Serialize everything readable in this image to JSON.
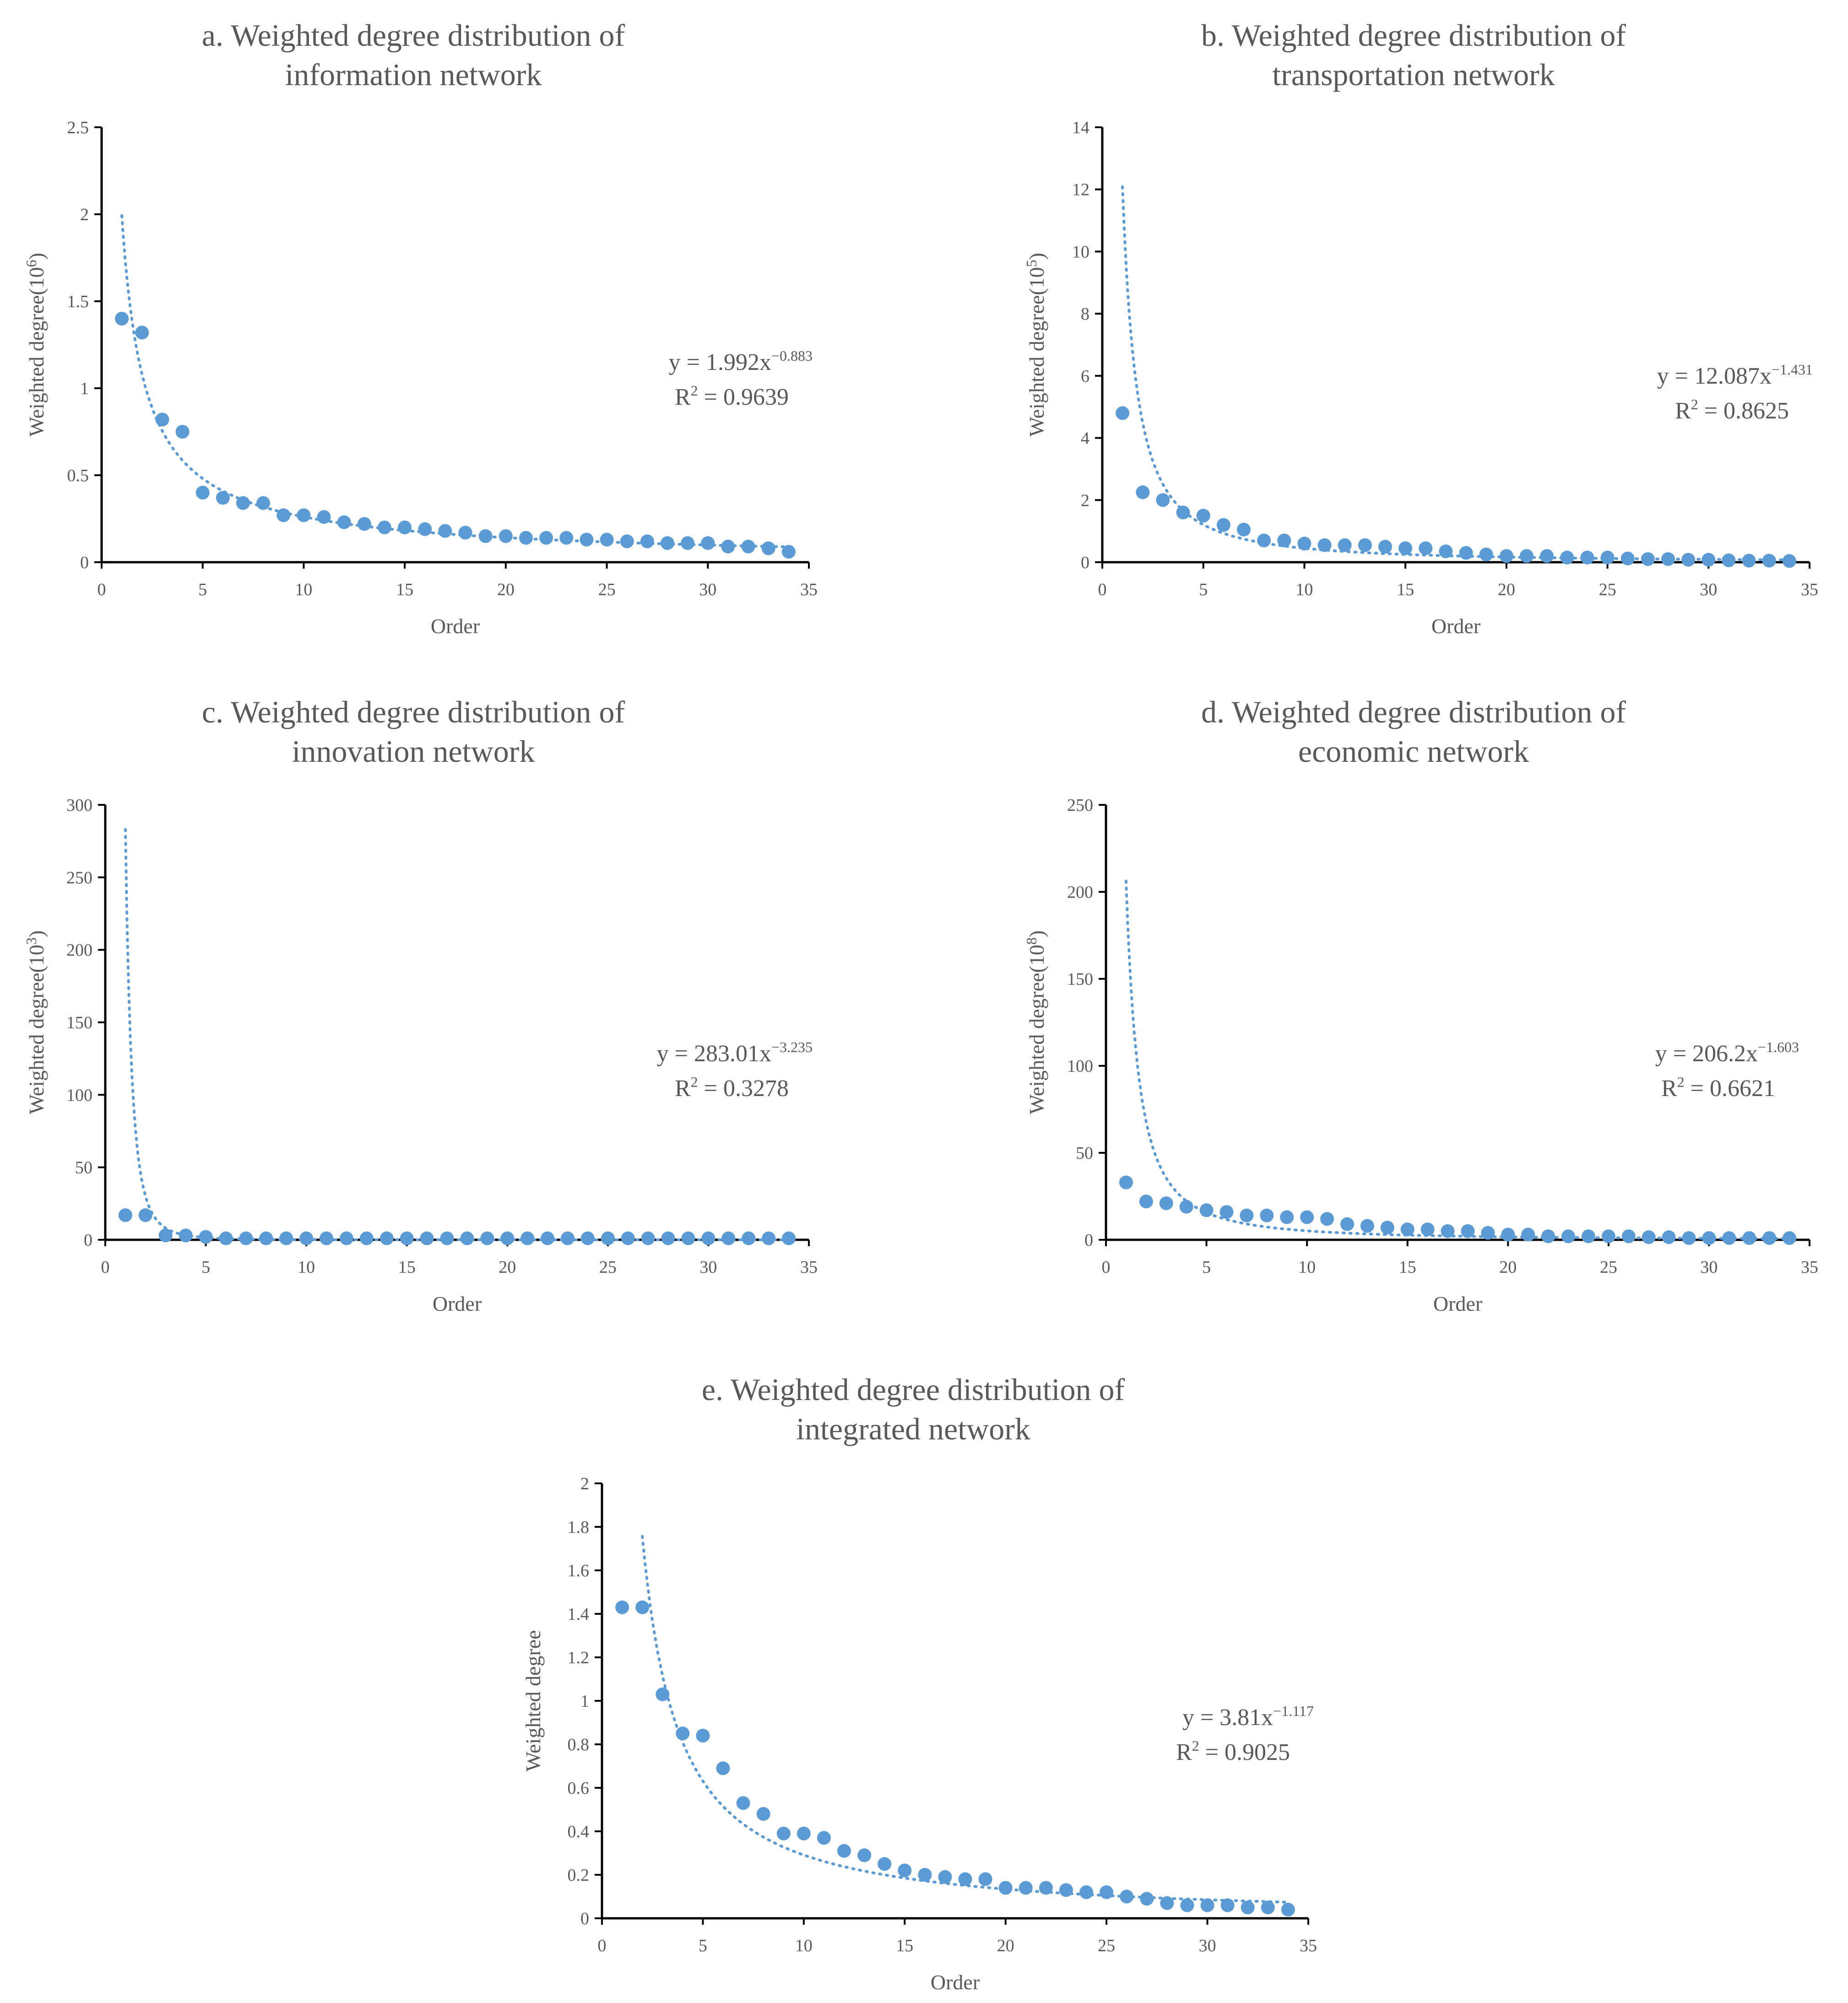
{
  "chart_data": [
    {
      "type": "scatter",
      "title": [
        "a. Weighted degree distribution of",
        "information network"
      ],
      "xlabel": "Order",
      "ylabel": "Weighted degree(10",
      "ylabel_sup": "6",
      "ylabel_end": ")",
      "xlim": [
        0,
        35
      ],
      "ylim": [
        0,
        2.5
      ],
      "xticks": [
        "0",
        "5",
        "10",
        "15",
        "20",
        "25",
        "30",
        "35"
      ],
      "yticks": [
        "0",
        "0.5",
        "1",
        "1.5",
        "2",
        "2.5"
      ],
      "series": [
        {
          "x": [
            1,
            2,
            3,
            4,
            5,
            6,
            7,
            8,
            9,
            10,
            11,
            12,
            13,
            14,
            15,
            16,
            17,
            18,
            19,
            20,
            21,
            22,
            23,
            24,
            25,
            26,
            27,
            28,
            29,
            30,
            31,
            32,
            33,
            34
          ],
          "y": [
            1.4,
            1.32,
            0.82,
            0.75,
            0.4,
            0.37,
            0.34,
            0.34,
            0.27,
            0.27,
            0.26,
            0.23,
            0.22,
            0.2,
            0.2,
            0.19,
            0.18,
            0.17,
            0.15,
            0.15,
            0.14,
            0.14,
            0.14,
            0.13,
            0.13,
            0.12,
            0.12,
            0.11,
            0.11,
            0.11,
            0.09,
            0.09,
            0.08,
            0.06
          ]
        }
      ],
      "trendline": {
        "type": "power",
        "a": 1.992,
        "b": -0.883,
        "x_from": 1,
        "x_to": 34
      },
      "equation": {
        "prefix": "y = 1.992x",
        "exponent": "−0.883",
        "r2_prefix": "R",
        "r2_sup": "2",
        "r2_value": " = 0.9639"
      }
    },
    {
      "type": "scatter",
      "title": [
        "b. Weighted degree distribution of",
        "transportation network"
      ],
      "xlabel": "Order",
      "ylabel": "Weighted degree(10",
      "ylabel_sup": "5",
      "ylabel_end": ")",
      "xlim": [
        0,
        35
      ],
      "ylim": [
        0,
        14
      ],
      "xticks": [
        "0",
        "5",
        "10",
        "15",
        "20",
        "25",
        "30",
        "35"
      ],
      "yticks": [
        "0",
        "2",
        "4",
        "6",
        "8",
        "10",
        "12",
        "14"
      ],
      "series": [
        {
          "x": [
            1,
            2,
            3,
            4,
            5,
            6,
            7,
            8,
            9,
            10,
            11,
            12,
            13,
            14,
            15,
            16,
            17,
            18,
            19,
            20,
            21,
            22,
            23,
            24,
            25,
            26,
            27,
            28,
            29,
            30,
            31,
            32,
            33,
            34
          ],
          "y": [
            4.8,
            2.25,
            2.0,
            1.6,
            1.5,
            1.2,
            1.05,
            0.7,
            0.7,
            0.6,
            0.55,
            0.55,
            0.55,
            0.5,
            0.45,
            0.45,
            0.35,
            0.3,
            0.25,
            0.2,
            0.2,
            0.2,
            0.15,
            0.15,
            0.15,
            0.12,
            0.1,
            0.1,
            0.08,
            0.08,
            0.06,
            0.05,
            0.05,
            0.04
          ]
        }
      ],
      "trendline": {
        "type": "power",
        "a": 12.087,
        "b": -1.431,
        "x_from": 1,
        "x_to": 34
      },
      "equation": {
        "prefix": "y = 12.087x",
        "exponent": "−1.431",
        "r2_prefix": "R",
        "r2_sup": "2",
        "r2_value": " = 0.8625"
      }
    },
    {
      "type": "scatter",
      "title": [
        "c. Weighted degree distribution of",
        "innovation network"
      ],
      "xlabel": "Order",
      "ylabel": "Weighted degree(10",
      "ylabel_sup": "3",
      "ylabel_end": ")",
      "xlim": [
        0,
        35
      ],
      "ylim": [
        0,
        300
      ],
      "xticks": [
        "0",
        "5",
        "10",
        "15",
        "20",
        "25",
        "30",
        "35"
      ],
      "yticks": [
        "0",
        "50",
        "100",
        "150",
        "200",
        "250",
        "300"
      ],
      "series": [
        {
          "x": [
            1,
            2,
            3,
            4,
            5,
            6,
            7,
            8,
            9,
            10,
            11,
            12,
            13,
            14,
            15,
            16,
            17,
            18,
            19,
            20,
            21,
            22,
            23,
            24,
            25,
            26,
            27,
            28,
            29,
            30,
            31,
            32,
            33,
            34
          ],
          "y": [
            17,
            17,
            3,
            3,
            2,
            1,
            1,
            1,
            1,
            1,
            1,
            1,
            1,
            1,
            1,
            1,
            1,
            1,
            1,
            1,
            1,
            1,
            1,
            1,
            1,
            1,
            1,
            1,
            1,
            1,
            1,
            1,
            1,
            1
          ]
        }
      ],
      "trendline": {
        "type": "power",
        "a": 283.01,
        "b": -3.235,
        "x_from": 1,
        "x_to": 34
      },
      "equation": {
        "prefix": "y = 283.01x",
        "exponent": "−3.235",
        "r2_prefix": "R",
        "r2_sup": "2",
        "r2_value": " = 0.3278"
      }
    },
    {
      "type": "scatter",
      "title": [
        "d. Weighted degree distribution of",
        "economic network"
      ],
      "xlabel": "Order",
      "ylabel": "Weighted degree(10",
      "ylabel_sup": "8",
      "ylabel_end": ")",
      "xlim": [
        0,
        35
      ],
      "ylim": [
        0,
        250
      ],
      "xticks": [
        "0",
        "5",
        "10",
        "15",
        "20",
        "25",
        "30",
        "35"
      ],
      "yticks": [
        "0",
        "50",
        "100",
        "150",
        "200",
        "250"
      ],
      "series": [
        {
          "x": [
            1,
            2,
            3,
            4,
            5,
            6,
            7,
            8,
            9,
            10,
            11,
            12,
            13,
            14,
            15,
            16,
            17,
            18,
            19,
            20,
            21,
            22,
            23,
            24,
            25,
            26,
            27,
            28,
            29,
            30,
            31,
            32,
            33,
            34
          ],
          "y": [
            33,
            22,
            21,
            19,
            17,
            16,
            14,
            14,
            13,
            13,
            12,
            9,
            8,
            7,
            6,
            6,
            5,
            5,
            4,
            3,
            3,
            2,
            2,
            2,
            2,
            2,
            1.5,
            1.5,
            1,
            1,
            1,
            1,
            1,
            1
          ]
        }
      ],
      "trendline": {
        "type": "power",
        "a": 206.2,
        "b": -1.603,
        "x_from": 1,
        "x_to": 34
      },
      "equation": {
        "prefix": "y = 206.2x",
        "exponent": "−1.603",
        "r2_prefix": "R",
        "r2_sup": "2",
        "r2_value": " = 0.6621"
      }
    },
    {
      "type": "scatter",
      "title": [
        "e. Weighted degree distribution of",
        "integrated network"
      ],
      "xlabel": "Order",
      "ylabel": "Weighted degree",
      "ylabel_sup": "",
      "ylabel_end": "",
      "xlim": [
        0,
        35
      ],
      "ylim": [
        0,
        2
      ],
      "xticks": [
        "0",
        "5",
        "10",
        "15",
        "20",
        "25",
        "30",
        "35"
      ],
      "yticks": [
        "0",
        "0.2",
        "0.4",
        "0.6",
        "0.8",
        "1",
        "1.2",
        "1.4",
        "1.6",
        "1.8",
        "2"
      ],
      "series": [
        {
          "x": [
            1,
            2,
            3,
            4,
            5,
            6,
            7,
            8,
            9,
            10,
            11,
            12,
            13,
            14,
            15,
            16,
            17,
            18,
            19,
            20,
            21,
            22,
            23,
            24,
            25,
            26,
            27,
            28,
            29,
            30,
            31,
            32,
            33,
            34
          ],
          "y": [
            1.43,
            1.43,
            1.03,
            0.85,
            0.84,
            0.69,
            0.53,
            0.48,
            0.39,
            0.39,
            0.37,
            0.31,
            0.29,
            0.25,
            0.22,
            0.2,
            0.19,
            0.18,
            0.18,
            0.14,
            0.14,
            0.14,
            0.13,
            0.12,
            0.12,
            0.1,
            0.09,
            0.07,
            0.06,
            0.06,
            0.06,
            0.05,
            0.05,
            0.04
          ]
        }
      ],
      "trendline": {
        "type": "power",
        "a": 3.81,
        "b": -1.117,
        "x_from": 2,
        "x_to": 34
      },
      "equation": {
        "prefix": "y = 3.81x",
        "exponent": "−1.117",
        "r2_prefix": "R",
        "r2_sup": "2",
        "r2_value": " = 0.9025"
      }
    }
  ]
}
